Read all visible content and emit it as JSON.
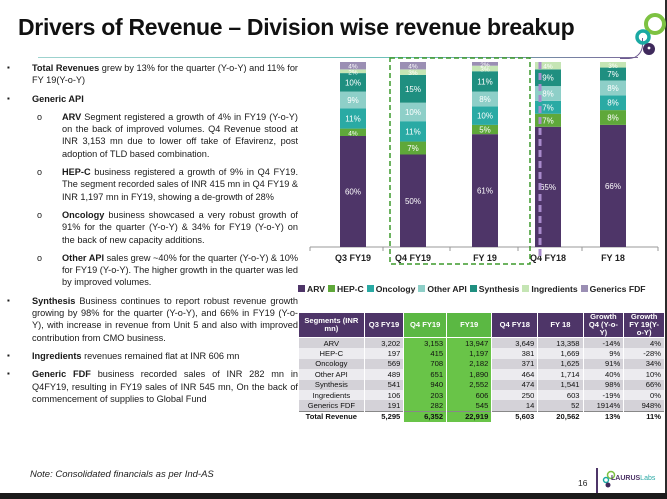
{
  "title": "Drivers of Revenue – Division wise revenue breakup",
  "bullets": {
    "total": {
      "bold": "Total Revenues",
      "text": " grew by 13% for the quarter (Y-o-Y) and 11% for FY 19(Y-o-Y)"
    },
    "generic_api": {
      "bold": "Generic API"
    },
    "arv": {
      "bold": "ARV",
      "text": " Segment registered a growth of 4% in FY19 (Y-o-Y) on the back of improved volumes. Q4 Revenue stood at INR 3,153 mn due to lower off take of Efavirenz, post adoption of TLD based combination."
    },
    "hepc": {
      "bold": "HEP-C",
      "text": " business registered a growth of 9% in Q4 FY19. The segment recorded sales of INR 415 mn in Q4 FY19 & INR 1,197 mn in FY19, showing a de-growth of 28%"
    },
    "oncology": {
      "bold": "Oncology",
      "text": " business showcased a very robust growth of 91% for the quarter (Y-o-Y) & 34% for FY19 (Y-o-Y) on the back of new capacity additions."
    },
    "other_api": {
      "bold": "Other API",
      "text": " sales grew ~40% for the quarter (Y-o-Y) & 10% for FY19 (Y-o-Y). The higher growth in the quarter was led by improved volumes."
    },
    "synthesis": {
      "bold": "Synthesis",
      "text": " Business continues to report robust revenue growth growing by 98% for the quarter (Y-o-Y), and 66% in FY19 (Y-o-Y), with increase in revenue from Unit 5 and also with improved contribution from CMO business."
    },
    "ingredients": {
      "bold": "Ingredients",
      "text": " revenues remained flat at INR 606 mn"
    },
    "fdf": {
      "bold": "Generic FDF",
      "text": " business recorded sales of INR 282 mn in Q4FY19, resulting in FY19 sales of INR 545 mn, On the back of commencement of supplies to Global Fund"
    },
    "marker_square": "▪",
    "marker_circle": "o"
  },
  "chart_data": {
    "type": "bar",
    "stacked": true,
    "title": "",
    "xlabel": "",
    "ylabel": "",
    "ylim": [
      0,
      100
    ],
    "grid": false,
    "legend_position": "bottom",
    "categories": [
      "Q3 FY19",
      "Q4 FY19",
      "FY 19",
      "Q4 FY18",
      "FY 18"
    ],
    "highlighted_categories": [
      "Q4 FY19",
      "FY 19"
    ],
    "series": [
      {
        "name": "ARV",
        "color": "#4e3568",
        "values": [
          60,
          50,
          61,
          65,
          66
        ]
      },
      {
        "name": "HEP-C",
        "color": "#5fa83a",
        "values": [
          4,
          7,
          5,
          7,
          8
        ]
      },
      {
        "name": "Oncology",
        "color": "#2aaaa4",
        "values": [
          11,
          11,
          10,
          7,
          8
        ]
      },
      {
        "name": "Other API",
        "color": "#8ecfc8",
        "values": [
          9,
          10,
          8,
          8,
          8
        ]
      },
      {
        "name": "Synthesis",
        "color": "#1f8f80",
        "values": [
          10,
          15,
          11,
          9,
          7
        ]
      },
      {
        "name": "Ingredients",
        "color": "#c5e5b4",
        "values": [
          2,
          3,
          3,
          4,
          3
        ]
      },
      {
        "name": "Generics FDF",
        "color": "#9b8fb4",
        "values": [
          4,
          4,
          2,
          0,
          0
        ]
      }
    ]
  },
  "table": {
    "headers": [
      "Segments (INR mn)",
      "Q3 FY19",
      "Q4 FY19",
      "FY19",
      "Q4 FY18",
      "FY 18",
      "Growth Q4 (Y-o-Y)",
      "Growth FY 19(Y-o-Y)"
    ],
    "rows": [
      [
        "ARV",
        "3,202",
        "3,153",
        "13,947",
        "3,649",
        "13,358",
        "-14%",
        "4%"
      ],
      [
        "HEP-C",
        "197",
        "415",
        "1,197",
        "381",
        "1,669",
        "9%",
        "-28%"
      ],
      [
        "Oncology",
        "569",
        "708",
        "2,182",
        "371",
        "1,625",
        "91%",
        "34%"
      ],
      [
        "Other API",
        "489",
        "651",
        "1,890",
        "464",
        "1,714",
        "40%",
        "10%"
      ],
      [
        "Synthesis",
        "541",
        "940",
        "2,552",
        "474",
        "1,541",
        "98%",
        "66%"
      ],
      [
        "Ingredients",
        "106",
        "203",
        "606",
        "250",
        "603",
        "-19%",
        "0%"
      ],
      [
        "Generics FDF",
        "191",
        "282",
        "545",
        "14",
        "52",
        "1914%",
        "948%"
      ]
    ],
    "total": [
      "Total Revenue",
      "5,295",
      "6,352",
      "22,919",
      "5,603",
      "20,562",
      "13%",
      "11%"
    ]
  },
  "footer": {
    "note": "Note: Consolidated financials as per Ind-AS",
    "page_number": "16",
    "logo_text_bold": "LAURUS",
    "logo_text_light": "Labs"
  }
}
